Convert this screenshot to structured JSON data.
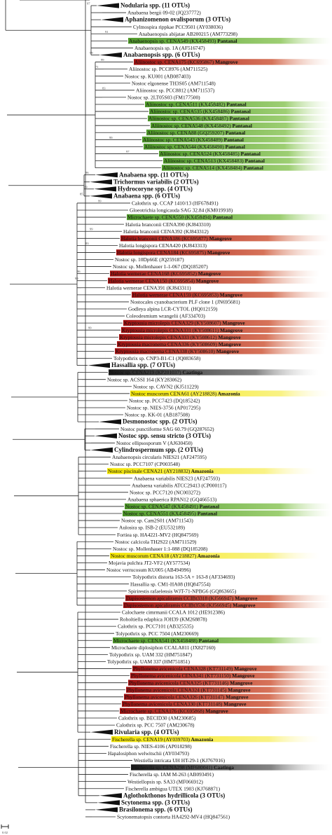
{
  "colors": {
    "pantanal": "#6aaa3a",
    "mangrove": "#b3261e",
    "amazonia": "#f2e100",
    "caatinga": "#2b2b2b",
    "branch": "#222222",
    "collapsed": "#111111"
  },
  "tree": {
    "scale_label": "0.02",
    "taxa": [
      {
        "label": "Nodularia spp. (11 OTUs)",
        "collapsed": true,
        "boot": "97"
      },
      {
        "label": "Anabaena bergii 09-02 (JQ237772)"
      },
      {
        "label": "Aphanizomenon ovalisporum (3 OTUs)",
        "collapsed": true
      },
      {
        "label": "Cylmospira rippkae PCC9501 (AY038036)"
      },
      {
        "label": "Anabaenopsis abijatae AB200215 (AM773298)",
        "boot": "91"
      },
      {
        "label": "Anabaenopsis sp. CENA549 (KX458493)",
        "habitat": "Pantanal"
      },
      {
        "label": "Anabaenopsis sp. 1A (AF516747)"
      },
      {
        "label": "Anabaenopsis spp. (6 OTUs)",
        "collapsed": true,
        "boot": "99"
      },
      {
        "label": "Aliinostoc sp. CENA175 (KC695867)",
        "habitat": "Mangrove",
        "boot": "99"
      },
      {
        "label": "Aliinostoc sp. PCC8976 (AM711525)",
        "boot": "71"
      },
      {
        "label": "Nostoc sp. KU001 (AB087403)"
      },
      {
        "label": "Nostoc elgonense TH3S05 (AM711548)"
      },
      {
        "label": "Aliinostoc sp. PCC8812 (AM711537)",
        "boot": "83"
      },
      {
        "label": "Nostoc sp. 2LT05S03 (FM177500)"
      },
      {
        "label": "Aliinostoc sp. CENA511 (KX458482)",
        "habitat": "Pantanal"
      },
      {
        "label": "Aliinostoc sp. CENA535 (KX458486)",
        "habitat": "Pantanal"
      },
      {
        "label": "Aliinostoc sp. CENA536 (KX458487)",
        "habitat": "Pantanal"
      },
      {
        "label": "Aliinostoc sp. CENA548 (KX458492)",
        "habitat": "Pantanal"
      },
      {
        "label": "Aliinostoc sp. CENA88 (GQ259207)",
        "habitat": "Pantanal"
      },
      {
        "label": "Aliinostoc sp. CENA543 (KX458489)",
        "habitat": "Pantanal",
        "boot": "99"
      },
      {
        "label": "Aliinostoc sp. CENA544 (KX458490)",
        "habitat": "Pantanal"
      },
      {
        "label": "Aliinostoc sp. CENA524 (KX458485)",
        "habitat": "Pantanal",
        "boot": "97"
      },
      {
        "label": "Aliinostoc sp. CENA513 (KX458483)",
        "habitat": "Pantanal"
      },
      {
        "label": "Aliinostoc sp. CENA514 (KX458484)",
        "habitat": "Pantanal"
      },
      {
        "label": "Anabaena spp. (11 OTUs)",
        "collapsed": true,
        "boot": "96"
      },
      {
        "label": "Trichormus variabilis (2 OTUs)",
        "collapsed": true
      },
      {
        "label": "Hydrocoryne spp. (4 OTUs)",
        "collapsed": true,
        "boot": "99"
      },
      {
        "label": "Anabaena spp. (6 OTUs)",
        "collapsed": true,
        "boot": "85"
      },
      {
        "label": "Calothrix sp. CCAP 1410/13 (HF678491)",
        "boot": "99"
      },
      {
        "label": "Gloeotrichia longicauda SAG 32.84 (KM019918)"
      },
      {
        "label": "Microchaete sp. CENA550 (KX458494)",
        "habitat": "Pantanal"
      },
      {
        "label": "Halotia branconii CENA390 (KJ843310)"
      },
      {
        "label": "Halotia branconii CENA392 (KJ843312)",
        "boot": "99"
      },
      {
        "label": "Halotia branconii CENA186 (KC695877)",
        "habitat": "Mangrove"
      },
      {
        "label": "Halotia longispora CENA420 (KJ843313)",
        "boot": "83"
      },
      {
        "label": "Halotia longispora CENA184 (KC695875)",
        "habitat": "Mangrove"
      },
      {
        "label": "Nostoc sp. 10Dp66E (JQ259187)"
      },
      {
        "label": "Nostoc sp. Mollenhauer 1-1-067 (DQ185207)"
      },
      {
        "label": "Halotia wernerae CENA168 (KC695852)",
        "habitat": "Mangrove",
        "boot": "96"
      },
      {
        "label": "Halotia wernerae CENA150 (KC695854)",
        "habitat": "Mangrove",
        "boot": "99"
      },
      {
        "label": "Halotia wernerae CENA391 (KJ843311)"
      },
      {
        "label": "Halotia wernerae CENA159 (KC695853)",
        "habitat": "Mangrove"
      },
      {
        "label": "Nostocales cyanobacterium PLF clone 1 (JN695681)"
      },
      {
        "label": "Godleya alpina LCR-CYTOL (HQ012159)"
      },
      {
        "label": "Coleodesmium wrangelii (AF334703)"
      },
      {
        "label": "Kryptousia microlepis CENA329 (KY508607)",
        "habitat": "Mangrove"
      },
      {
        "label": "Kryptousia microlepis CENA331 (KY508611)",
        "habitat": "Mangrove",
        "boot": "99"
      },
      {
        "label": "Kryptousia microlepis CENA333 (KY508612)",
        "habitat": "Mangrove"
      },
      {
        "label": "Kryptousia macronema CENA336 (KY508609)",
        "habitat": "Mangrove"
      },
      {
        "label": "Kryptousia macronema CENA338 (KY508610)",
        "habitat": "Mangrove"
      },
      {
        "label": "Tolypothrix sp. CNP3-B1-C1 (JQ083658)"
      },
      {
        "label": "Hassallia spp. (7 OTUs)",
        "collapsed": true
      },
      {
        "label": "Nostoc sp. CENA219 (KP201037)",
        "habitat": "Caatinga"
      },
      {
        "label": "Nostoc sp. ACSSI 164 (KY283062)"
      },
      {
        "label": "Nostoc sp. CAVN2 (KJ511229)"
      },
      {
        "label": "Nostoc muscorum CENA61 (AY218828)",
        "habitat": "Amazonia"
      },
      {
        "label": "Nostoc sp. PCC7423 (DQ185242)"
      },
      {
        "label": "Nostoc sp. NIES-3756 (AP017295)"
      },
      {
        "label": "Nostoc sp. KK-01 (AB187508)"
      },
      {
        "label": "Desmonostoc spp. (2 OTUs)",
        "collapsed": true
      },
      {
        "label": "Nostoc punctiforme SAG 60.79 (GQ287652)"
      },
      {
        "label": "Nostoc spp. sensu stricto (3 OTUs)",
        "collapsed": true
      },
      {
        "label": "Nostoc ellipsosporum V (AJ630450)"
      },
      {
        "label": "Cylindrospermum spp. (2 OTUs)",
        "collapsed": true
      },
      {
        "label": "Anabaenopsis circularis NIES21 (AF247595)"
      },
      {
        "label": "Nostoc sp. PCC7107 (CP003548)"
      },
      {
        "label": "Nostoc piscinale CENA21 (AY218832)",
        "habitat": "Amazonia"
      },
      {
        "label": "Anabaena variabilis NIES23 (AF247593)"
      },
      {
        "label": "Anabaena variabilis ATCC29413 (CP000117)"
      },
      {
        "label": "Nostoc sp. PCC7120 (NC003272)"
      },
      {
        "label": "Anabaena sphaerica RPAN12 (GQ466513)"
      },
      {
        "label": "Nostoc sp. CENA547 (KX458491)",
        "habitat": "Pantanal"
      },
      {
        "label": "Nostoc sp. CENA551 (KX458495)",
        "habitat": "Pantanal"
      },
      {
        "label": "Nostoc sp. Cam2S01 (AM711543)"
      },
      {
        "label": "Aulosira sp. ISB-2 (EU532189)"
      },
      {
        "label": "Fortiea sp. HA4221-MV2 (HQ847569)"
      },
      {
        "label": "Nostoc calcicola TH2S22 (AM711529)"
      },
      {
        "label": "Nostoc sp. Mollenhauer 1:1-088 (DQ185208)"
      },
      {
        "label": "Nostoc muscorum CENA18 (AY218827)",
        "habitat": "Amazonia"
      },
      {
        "label": "Mojavia pulchra JT2-VF2 (AY577534)"
      },
      {
        "label": "Nostoc verrucosum KU005 (AB494996)"
      },
      {
        "label": "Tolypothrix distorta 163-5A + 163-8 (AF334693)"
      },
      {
        "label": "Hassallia sp. CM1-HA08 (HQ847554)"
      },
      {
        "label": "Spirirestis rafaelensis WJT-71-NPBG6 (GQ863665)"
      },
      {
        "label": "Dapisostemon apicaliramis CCIBt3318 (KJ566947)",
        "habitat": "Mangrove"
      },
      {
        "label": "Dapisostemon apicaliramis CCIBt3536 (KJ566945)",
        "habitat": "Mangrove"
      },
      {
        "label": "Calochaete cimrmanii CCALA 1012 (HE912386)"
      },
      {
        "label": "Roholtiella edaphica JOH39 (KM268878)"
      },
      {
        "label": "Calothrix sp. PCC7101 (AB325535)"
      },
      {
        "label": "Tolypothrix sp. PCC 7504 (AM230669)"
      },
      {
        "label": "Microchaete sp. CENA541 (KX458488)",
        "habitat": "Pantanal"
      },
      {
        "label": "Microchaete diplosiphon CCALA811 (JX827160)"
      },
      {
        "label": "Tolypothrix sp. UAM 332 (HM751847)"
      },
      {
        "label": "Tolypothrix sp. UAM 337 (HM751851)"
      },
      {
        "label": "Phyllonema avicenicola CENA328 (KT731149)",
        "habitat": "Mangrove"
      },
      {
        "label": "Phyllonema avicenicola CENA341 (KT731150)",
        "habitat": "Mangrove"
      },
      {
        "label": "Phyllonema avicenicola CENA325 (KT731146)",
        "habitat": "Mangrove"
      },
      {
        "label": "Phyllonema avicenicola CENA324 (KT731145)",
        "habitat": "Mangrove"
      },
      {
        "label": "Phyllonema avicenicola CENA326 (KT731147)",
        "habitat": "Mangrove"
      },
      {
        "label": "Phyllonema avicenicola CENA330 (KT731148)",
        "habitat": "Mangrove"
      },
      {
        "label": "Microchaete sp. CENA176 (KC695868)",
        "habitat": "Mangrove"
      },
      {
        "label": "Calothrix sp. BECID30 (AM230685)"
      },
      {
        "label": "Calothrix sp. PCC 7507 (AM230678)"
      },
      {
        "label": "Rivularia spp. (4 OTUs)",
        "collapsed": true
      },
      {
        "label": "Fischerella sp. CENA19 (AY039703)",
        "habitat": "Amazonia"
      },
      {
        "label": "Fischerella sp. NIES-4106 (AP018298)"
      },
      {
        "label": "Hapalosiphon welwitschii (AY034793)"
      },
      {
        "label": "Westiella intricata UH HT-29-1 (KJ767016)"
      },
      {
        "label": "Fischerella sp. CENA298 (MF680041)",
        "habitat": "Caatinga"
      },
      {
        "label": "Fischerella sp. IAM M-263 (AB093491)"
      },
      {
        "label": "Westiellopsis sp. SA33 (MF066912)"
      },
      {
        "label": "Fischerella ambigua UTEX 1903 (KJ768871)"
      },
      {
        "label": "Aglothokthonos hydrillicola (3 OTUs)",
        "collapsed": true
      },
      {
        "label": "Scytonema spp. (3 OTUs)",
        "collapsed": true
      },
      {
        "label": "Brasilonema spp. (6 OTUs)",
        "collapsed": true
      },
      {
        "label": "Scytonematopsis contorta HA4292-MV4 (HQ847561)"
      }
    ]
  }
}
